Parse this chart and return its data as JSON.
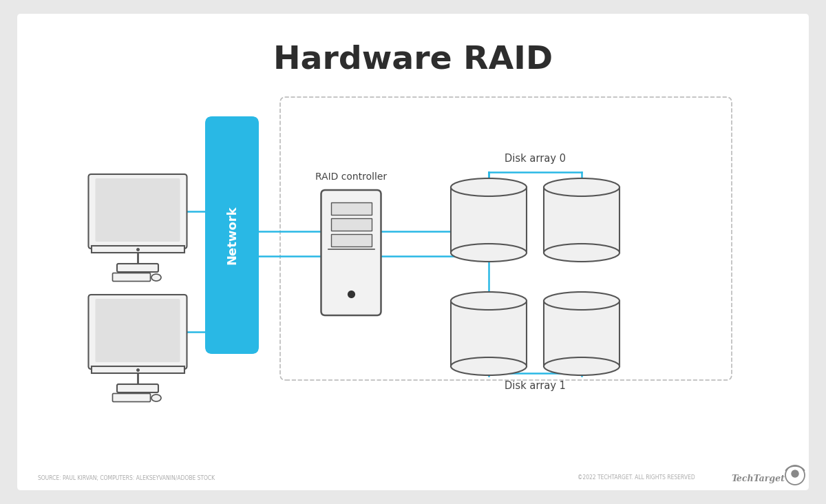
{
  "title": "Hardware RAID",
  "title_fontsize": 34,
  "title_fontweight": "bold",
  "title_color": "#2d2d2d",
  "bg_color": "#e8e8e8",
  "card_bg": "#ffffff",
  "network_color": "#29b8e5",
  "line_color": "#29b8e5",
  "device_color": "#555555",
  "device_fill": "#f2f2f2",
  "disk_fill": "#f0f0f0",
  "disk_edge": "#555555",
  "dashed_box_color": "#bbbbbb",
  "label_color": "#444444",
  "footer_color": "#aaaaaa",
  "footer_left": "SOURCE: PAUL KIRVAN; COMPUTERS: ALEKSEYVANIN/ADOBE STOCK",
  "footer_right": "©2022 TECHTARGET. ALL RIGHTS RESERVED",
  "footer_brand": "TechTarget",
  "network_label": "Network",
  "controller_label": "RAID controller",
  "disk_array0_label": "Disk array 0",
  "disk_array1_label": "Disk array 1",
  "fig_width": 12.0,
  "fig_height": 7.32,
  "dpi": 100
}
